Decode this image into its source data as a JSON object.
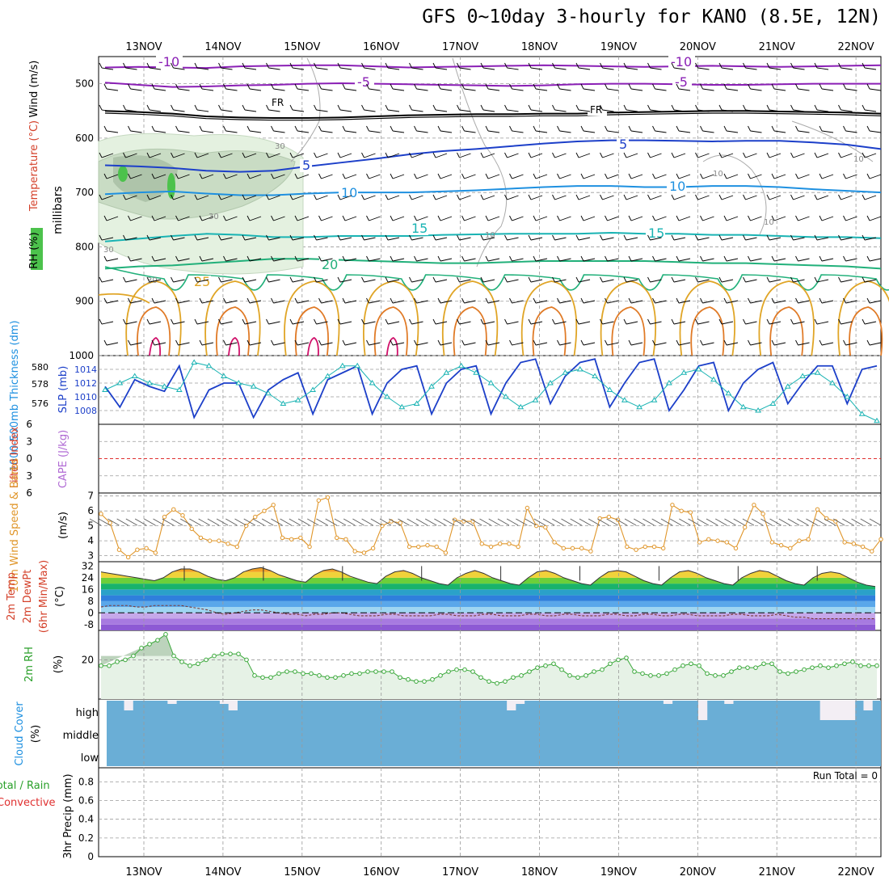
{
  "title": "GFS 0~10day 3-hourly for KANO (8.5E, 12N)",
  "colors": {
    "frame": "#000000",
    "grid": "#9a9a9a",
    "purple": "#8a1fb5",
    "navy": "#1c3fc9",
    "sky": "#1e90e0",
    "teal": "#19b3b3",
    "green": "#21b07a",
    "gold": "#e0a526",
    "orange": "#e07a26",
    "magenta": "#d0106a",
    "cloud": "#6aaed6",
    "windline": "#e0962a",
    "rh_line": "#3aa83a"
  },
  "dates": [
    "13NOV",
    "14NOV",
    "15NOV",
    "16NOV",
    "17NOV",
    "18NOV",
    "19NOV",
    "20NOV",
    "21NOV",
    "22NOV"
  ],
  "chart_data": [
    {
      "type": "line",
      "panel": "upper-air cross section",
      "ylabels": [
        "Wind (m/s)",
        "Temperature (°C)",
        "RH (%)",
        "millibars"
      ],
      "yticks": [
        500,
        600,
        700,
        800,
        900,
        1000
      ],
      "ylim": [
        1000,
        450
      ],
      "isotherm_labels": [
        "-10",
        "-10",
        "-5",
        "-5",
        "FR",
        "FR",
        "5",
        "5",
        "10",
        "10",
        "15",
        "15",
        "20",
        "25"
      ],
      "rh_labels": [
        "30",
        "30",
        "30",
        "30",
        "10",
        "10",
        "10",
        "10"
      ],
      "series": [
        {
          "name": "-10",
          "pressure": [
            470,
            469,
            470,
            471,
            468,
            467,
            466,
            466,
            468,
            470,
            469,
            468,
            467,
            466,
            467,
            468,
            469,
            468,
            467,
            468,
            469,
            468,
            467,
            466
          ]
        },
        {
          "name": "-5",
          "pressure": [
            498,
            502,
            506,
            505,
            503,
            502,
            500,
            499,
            500,
            501,
            502,
            503,
            504,
            503,
            501,
            500,
            500,
            501,
            502,
            502,
            501,
            500,
            500,
            500
          ]
        },
        {
          "name": "FR",
          "pressure": [
            550,
            552,
            555,
            560,
            562,
            563,
            563,
            562,
            560,
            558,
            557,
            556,
            556,
            555,
            555,
            553,
            552,
            551,
            550,
            550,
            551,
            552,
            553,
            555
          ]
        },
        {
          "name": "5",
          "pressure": [
            650,
            652,
            655,
            660,
            662,
            660,
            652,
            645,
            638,
            630,
            624,
            620,
            615,
            610,
            606,
            604,
            604,
            605,
            606,
            605,
            605,
            608,
            612,
            620
          ]
        },
        {
          "name": "10",
          "pressure": [
            703,
            700,
            698,
            702,
            705,
            705,
            702,
            700,
            700,
            700,
            698,
            696,
            693,
            690,
            688,
            688,
            690,
            690,
            688,
            688,
            690,
            694,
            697,
            700
          ]
        },
        {
          "name": "15",
          "pressure": [
            790,
            785,
            780,
            776,
            778,
            782,
            782,
            780,
            780,
            780,
            778,
            777,
            776,
            776,
            776,
            774,
            776,
            776,
            778,
            778,
            780,
            782,
            782,
            784
          ]
        },
        {
          "name": "20",
          "pressure": [
            840,
            836,
            834,
            830,
            826,
            822,
            822,
            824,
            826,
            828,
            830,
            830,
            828,
            826,
            826,
            826,
            826,
            828,
            830,
            830,
            832,
            834,
            836,
            840
          ]
        }
      ]
    },
    {
      "type": "line",
      "panel": "thickness and sea level pressure",
      "ylabels": [
        "1000-500mb Thickness (dm)",
        "SLP (mb)"
      ],
      "thickness_ticks": [
        576,
        578,
        580
      ],
      "slp_ticks": [
        1008,
        1010,
        1012,
        1014
      ],
      "series": [
        {
          "name": "1000-500mb Thickness (dm)",
          "values": [
            1011.5,
            1008.5,
            1012.5,
            1011.5,
            1010.8,
            1014.5,
            1007,
            1011,
            1012,
            1012,
            1007,
            1011,
            1012.5,
            1013.5,
            1007.5,
            1012.5,
            1013.5,
            1014.5,
            1007.5,
            1012,
            1014,
            1014.5,
            1007.5,
            1012,
            1014,
            1014.5,
            1007.5,
            1012,
            1015,
            1015.5,
            1009,
            1013,
            1015,
            1015.5,
            1008.5,
            1012,
            1015,
            1015.5,
            1008,
            1011,
            1014.5,
            1015,
            1008,
            1012,
            1014,
            1015,
            1009,
            1012,
            1014.5,
            1014.5,
            1009,
            1014,
            1014.5
          ]
        },
        {
          "name": "SLP (mb)",
          "values": [
            1011,
            1012,
            1013,
            1012,
            1011.5,
            1011,
            1015,
            1014.5,
            1013,
            1012,
            1011.5,
            1010.5,
            1009,
            1009.5,
            1011,
            1013,
            1014.5,
            1014.5,
            1012,
            1010,
            1008.5,
            1009,
            1011.5,
            1013.5,
            1014.5,
            1013.5,
            1012,
            1010,
            1008.5,
            1009.5,
            1012,
            1013.5,
            1014,
            1013,
            1011,
            1009.5,
            1008.5,
            1009.5,
            1012,
            1013.5,
            1014,
            1012.5,
            1010.5,
            1008.5,
            1008,
            1009,
            1011.5,
            1013,
            1013.5,
            1012,
            1010,
            1007.5,
            1006.5
          ]
        }
      ]
    },
    {
      "type": "line",
      "panel": "lifted index and CAPE",
      "ylabels": [
        "Lifted Index",
        "CAPE (J/kg)"
      ],
      "yticks": [
        -6,
        -3,
        0,
        3,
        6
      ],
      "ylim": [
        6,
        -6
      ],
      "series": [
        {
          "values": []
        }
      ]
    },
    {
      "type": "line",
      "panel": "10m wind",
      "ylabels": [
        "10m Wind Speed & Barbs",
        "(m/s)"
      ],
      "yticks": [
        3,
        4,
        5,
        6,
        7
      ],
      "ylim": [
        2.6,
        7.2
      ],
      "series": [
        {
          "name": "10m Wind Speed",
          "values": [
            5.8,
            5.2,
            3.4,
            2.9,
            3.4,
            3.5,
            3.2,
            5.6,
            6.1,
            5.7,
            4.8,
            4.2,
            4.0,
            4.0,
            3.8,
            3.6,
            5.0,
            5.6,
            6.0,
            6.4,
            4.2,
            4.1,
            4.2,
            3.6,
            6.7,
            6.9,
            4.2,
            4.1,
            3.3,
            3.2,
            3.5,
            5.0,
            5.3,
            5.2,
            3.6,
            3.6,
            3.7,
            3.6,
            3.2,
            5.4,
            5.3,
            5.3,
            3.8,
            3.6,
            3.8,
            3.8,
            3.6,
            6.2,
            5.0,
            4.9,
            3.9,
            3.5,
            3.5,
            3.5,
            3.3,
            5.5,
            5.6,
            5.4,
            3.6,
            3.4,
            3.6,
            3.6,
            3.5,
            6.4,
            6.0,
            5.9,
            3.9,
            4.1,
            4.0,
            3.9,
            3.5,
            4.9,
            6.4,
            5.8,
            3.9,
            3.7,
            3.5,
            4.0,
            4.1,
            6.1,
            5.5,
            5.3,
            3.9,
            3.8,
            3.6,
            3.3,
            4.1
          ]
        }
      ]
    },
    {
      "type": "area",
      "panel": "2m temperature and dewpoint",
      "ylabels": [
        "2m Temp",
        "2m DewPt",
        "(6hr Min/Max)",
        "(°C)"
      ],
      "yticks": [
        32,
        24,
        16,
        8,
        0,
        -8
      ],
      "ylim": [
        -12,
        35
      ],
      "series": [
        {
          "name": "2m Temp",
          "values": [
            28,
            27,
            26,
            25,
            24,
            23,
            22,
            24,
            28,
            30,
            30,
            28,
            25,
            23,
            22,
            24,
            28,
            30,
            31,
            29,
            26,
            24,
            22,
            21,
            26,
            29,
            30,
            28,
            25,
            23,
            21,
            20,
            25,
            28,
            29,
            27,
            24,
            22,
            20,
            19,
            24,
            27,
            29,
            27,
            24,
            22,
            20,
            19,
            24,
            28,
            29,
            27,
            24,
            22,
            20,
            19,
            24,
            28,
            29,
            28,
            25,
            22,
            20,
            19,
            24,
            28,
            29,
            27,
            24,
            22,
            20,
            19,
            24,
            27,
            29,
            28,
            25,
            22,
            20,
            19,
            24,
            27,
            28,
            27,
            24,
            21,
            19,
            18
          ]
        },
        {
          "name": "2m DewPt",
          "values": [
            4,
            5,
            5,
            5,
            4,
            4,
            5,
            5,
            5,
            5,
            4,
            3,
            2,
            0,
            -1,
            0,
            1,
            2,
            2,
            1,
            0,
            -1,
            -1,
            -2,
            -1,
            -1,
            0,
            0,
            -1,
            -2,
            -2,
            -2,
            -1,
            -1,
            -2,
            -2,
            -2,
            -2,
            -1,
            -1,
            -2,
            -2,
            -2,
            -1,
            -1,
            -2,
            -2,
            -2,
            -1,
            -1,
            -2,
            -2,
            -1,
            -1,
            -2,
            -2,
            -2,
            -1,
            -1,
            -2,
            -2,
            -1,
            -1,
            -2,
            -2,
            -1,
            -1,
            -2,
            -2,
            -2,
            -2,
            -1,
            -1,
            -2,
            -2,
            -2,
            -1,
            -2,
            -3,
            -3,
            -4,
            -4,
            -4,
            -4,
            -4,
            -4,
            -4,
            -4
          ]
        }
      ]
    },
    {
      "type": "area",
      "panel": "2m relative humidity",
      "ylabels": [
        "2m RH",
        "(%)"
      ],
      "yticks": [
        20
      ],
      "ylim": [
        0,
        35
      ],
      "series": [
        {
          "name": "2m RH",
          "values": [
            17,
            17,
            19,
            20,
            22,
            26,
            28,
            30,
            33,
            22,
            19,
            17,
            18,
            20,
            22,
            23,
            23,
            23,
            20,
            12,
            11,
            11,
            13,
            14,
            14,
            13,
            13,
            12,
            11,
            11,
            12,
            13,
            13,
            14,
            14,
            14,
            14,
            11,
            10,
            9,
            9,
            10,
            12,
            14,
            15,
            15,
            14,
            11,
            9,
            8,
            9,
            11,
            12,
            14,
            16,
            17,
            18,
            15,
            12,
            11,
            12,
            14,
            15,
            18,
            20,
            21,
            14,
            13,
            12,
            12,
            13,
            15,
            17,
            18,
            17,
            13,
            12,
            12,
            14,
            16,
            16,
            16,
            18,
            18,
            14,
            13,
            14,
            15,
            16,
            17,
            16,
            17,
            18,
            19,
            17,
            17,
            17
          ]
        }
      ]
    },
    {
      "type": "bar",
      "panel": "cloud cover",
      "ylabels": [
        "Cloud Cover",
        "(%)"
      ],
      "levels": [
        "high",
        "middle",
        "low"
      ],
      "series": [
        {
          "name": "high",
          "values": [
            100,
            100,
            60,
            100,
            100,
            100,
            100,
            90,
            100,
            100,
            100,
            100,
            100,
            95,
            60,
            100,
            100,
            100,
            100,
            100,
            100,
            100,
            100,
            100,
            100,
            100,
            100,
            100,
            100,
            100,
            100,
            100,
            100,
            100,
            100,
            100,
            100,
            100,
            100,
            100,
            100,
            100,
            100,
            100,
            100,
            100,
            60,
            90,
            100,
            100,
            100,
            100,
            100,
            100,
            100,
            100,
            100,
            100,
            100,
            100,
            100,
            100,
            100,
            100,
            95,
            100,
            100,
            100,
            0,
            100,
            100,
            90,
            100,
            100,
            100,
            100,
            100,
            100,
            100,
            100,
            100,
            100,
            0,
            0,
            0,
            0,
            100,
            60,
            100
          ]
        },
        {
          "name": "middle",
          "values": [
            100
          ]
        },
        {
          "name": "low",
          "values": [
            100
          ]
        }
      ]
    },
    {
      "type": "bar",
      "panel": "3hr precipitation",
      "ylabels": [
        "Total / Rain",
        "Convective",
        "3hr Precip (mm)"
      ],
      "yticks": [
        0,
        0.2,
        0.4,
        0.6,
        0.8
      ],
      "ylim": [
        0,
        0.95
      ],
      "run_total": "Run Total = 0",
      "series": [
        {
          "name": "3hr Precip",
          "values": []
        }
      ]
    }
  ]
}
